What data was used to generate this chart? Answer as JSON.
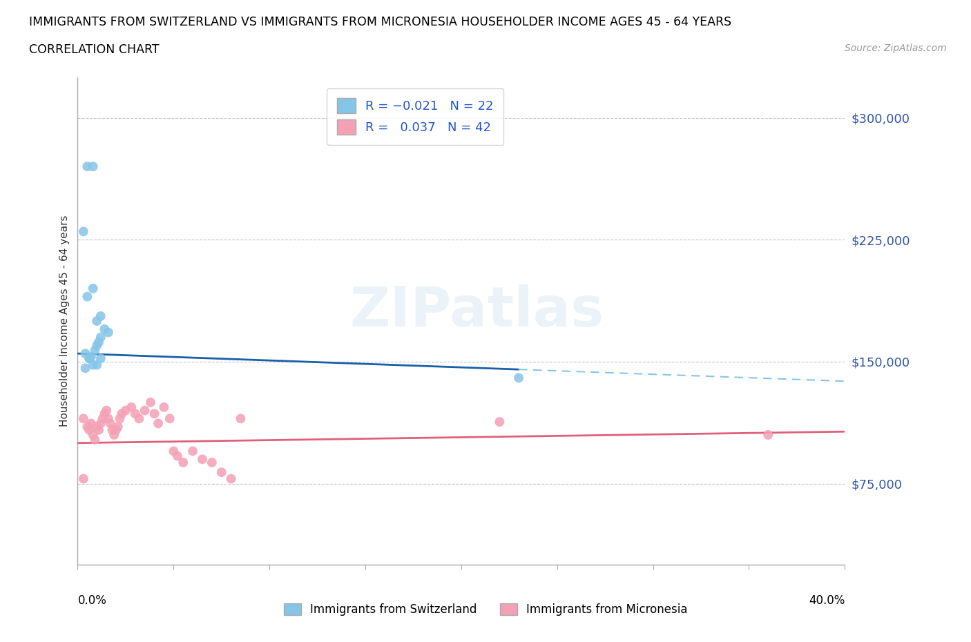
{
  "title_line1": "IMMIGRANTS FROM SWITZERLAND VS IMMIGRANTS FROM MICRONESIA HOUSEHOLDER INCOME AGES 45 - 64 YEARS",
  "title_line2": "CORRELATION CHART",
  "source_text": "Source: ZipAtlas.com",
  "ylabel": "Householder Income Ages 45 - 64 years",
  "ytick_values": [
    75000,
    150000,
    225000,
    300000
  ],
  "ymin": 25000,
  "ymax": 325000,
  "xmin": 0.0,
  "xmax": 0.4,
  "watermark": "ZIPatlas",
  "swiss_R": -0.021,
  "swiss_N": 22,
  "micro_R": 0.037,
  "micro_N": 42,
  "swiss_color": "#85c5e8",
  "swiss_line_color": "#1a5fa8",
  "swiss_dash_color": "#85c5e8",
  "micro_color": "#f4a0b5",
  "micro_line_color": "#e0607a",
  "swiss_x": [
    0.005,
    0.008,
    0.005,
    0.008,
    0.01,
    0.012,
    0.014,
    0.016,
    0.004,
    0.006,
    0.007,
    0.009,
    0.01,
    0.011,
    0.012,
    0.003,
    0.006,
    0.008,
    0.01,
    0.012,
    0.23,
    0.004
  ],
  "swiss_y": [
    270000,
    270000,
    190000,
    195000,
    175000,
    178000,
    170000,
    168000,
    155000,
    152000,
    153000,
    157000,
    160000,
    162000,
    165000,
    230000,
    152000,
    148000,
    148000,
    152000,
    140000,
    146000
  ],
  "micro_x": [
    0.003,
    0.005,
    0.006,
    0.007,
    0.008,
    0.009,
    0.01,
    0.011,
    0.012,
    0.013,
    0.014,
    0.015,
    0.016,
    0.017,
    0.018,
    0.019,
    0.02,
    0.021,
    0.022,
    0.023,
    0.025,
    0.028,
    0.03,
    0.032,
    0.035,
    0.038,
    0.04,
    0.042,
    0.045,
    0.048,
    0.05,
    0.052,
    0.055,
    0.06,
    0.065,
    0.07,
    0.075,
    0.08,
    0.085,
    0.22,
    0.003,
    0.36
  ],
  "micro_y": [
    115000,
    110000,
    108000,
    112000,
    105000,
    102000,
    110000,
    108000,
    112000,
    115000,
    118000,
    120000,
    115000,
    112000,
    108000,
    105000,
    108000,
    110000,
    115000,
    118000,
    120000,
    122000,
    118000,
    115000,
    120000,
    125000,
    118000,
    112000,
    122000,
    115000,
    95000,
    92000,
    88000,
    95000,
    90000,
    88000,
    82000,
    78000,
    115000,
    113000,
    78000,
    105000
  ],
  "legend_box_color": "#ffffff",
  "dashed_line_color": "#b0b8c8",
  "background_color": "#ffffff"
}
